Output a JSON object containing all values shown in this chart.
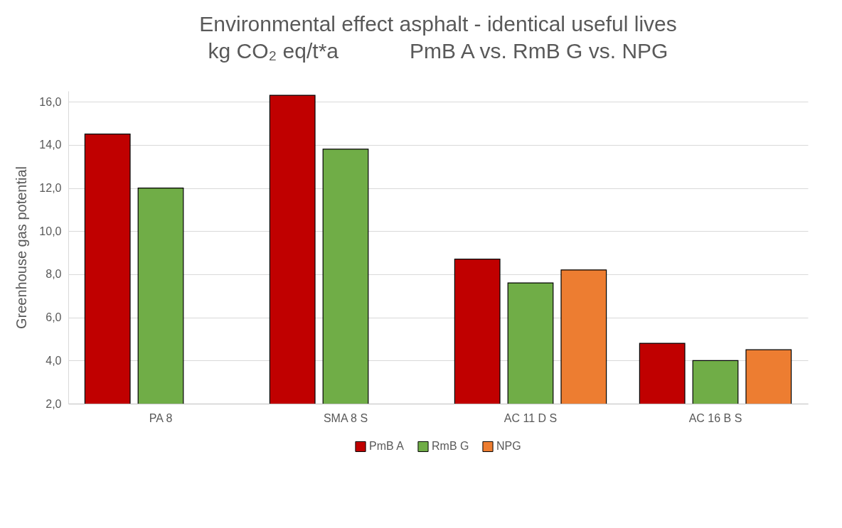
{
  "chart_data": {
    "type": "bar",
    "title": "Environmental effect asphalt - identical useful lives",
    "subtitle": "kg CO₂ eq/t*a            PmB A vs. RmB G vs. NPG",
    "ylabel": "Greenhouse gas potential",
    "categories": [
      "PA 8",
      "SMA 8 S",
      "AC 11 D S",
      "AC 16 B S"
    ],
    "series": [
      {
        "name": "PmB A",
        "color": "#c00000",
        "values": [
          14.5,
          16.3,
          8.7,
          4.8
        ]
      },
      {
        "name": "RmB G",
        "color": "#70ad47",
        "values": [
          12.0,
          13.8,
          7.6,
          4.0
        ]
      },
      {
        "name": "NPG",
        "color": "#ed7d31",
        "values": [
          null,
          null,
          8.2,
          4.5
        ]
      }
    ],
    "ylim": [
      2,
      16.5
    ],
    "yticks": [
      {
        "value": 2,
        "label": "2,0"
      },
      {
        "value": 4,
        "label": "4,0"
      },
      {
        "value": 6,
        "label": "6,0"
      },
      {
        "value": 8,
        "label": "8,0"
      },
      {
        "value": 10,
        "label": "10,0"
      },
      {
        "value": 12,
        "label": "12,0"
      },
      {
        "value": 14,
        "label": "14,0"
      },
      {
        "value": 16,
        "label": "16,0"
      }
    ],
    "grid": "y",
    "legend": "bottom"
  }
}
